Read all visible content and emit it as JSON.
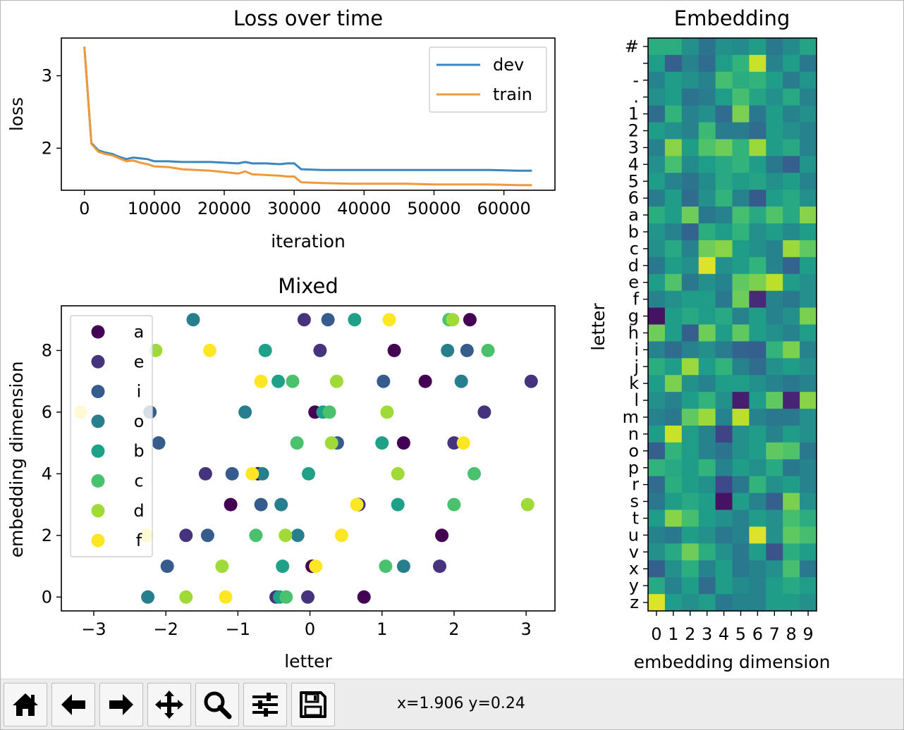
{
  "toolbar": {
    "buttons": [
      {
        "icon": "home-icon"
      },
      {
        "icon": "back-arrow-icon"
      },
      {
        "icon": "forward-arrow-icon"
      },
      {
        "icon": "pan-move-icon"
      },
      {
        "icon": "zoom-magnifier-icon"
      },
      {
        "icon": "configure-subplots-icon"
      },
      {
        "icon": "save-floppy-icon"
      }
    ],
    "coords": "x=1.906 y=0.24"
  },
  "chart_data": [
    {
      "type": "line",
      "title": "Loss over time",
      "xlabel": "iteration",
      "ylabel": "loss",
      "xlim": [
        -3300,
        67300
      ],
      "ylim": [
        1.42,
        3.52
      ],
      "xticks": [
        0,
        10000,
        20000,
        30000,
        40000,
        50000,
        60000
      ],
      "yticks": [
        2,
        3
      ],
      "legend": "upper right",
      "series": [
        {
          "name": "dev",
          "color": "#3a86bf",
          "x": [
            0,
            1000,
            2000,
            3000,
            4000,
            5000,
            6000,
            7000,
            8000,
            9000,
            10000,
            12000,
            14000,
            16000,
            18000,
            20000,
            22000,
            23000,
            24000,
            26000,
            28000,
            29000,
            30000,
            31000,
            34000,
            38000,
            42000,
            46000,
            50000,
            54000,
            58000,
            62000,
            64000
          ],
          "y": [
            3.4,
            2.07,
            1.97,
            1.94,
            1.92,
            1.88,
            1.85,
            1.87,
            1.86,
            1.85,
            1.82,
            1.82,
            1.81,
            1.81,
            1.81,
            1.8,
            1.79,
            1.81,
            1.79,
            1.79,
            1.78,
            1.79,
            1.79,
            1.71,
            1.7,
            1.7,
            1.7,
            1.7,
            1.7,
            1.7,
            1.7,
            1.69,
            1.69
          ]
        },
        {
          "name": "train",
          "color": "#f0993c",
          "x": [
            0,
            1000,
            2000,
            3000,
            4000,
            5000,
            6000,
            7000,
            8000,
            9000,
            10000,
            12000,
            14000,
            16000,
            18000,
            20000,
            22000,
            23000,
            24000,
            26000,
            28000,
            29000,
            30000,
            31000,
            34000,
            38000,
            42000,
            46000,
            50000,
            54000,
            58000,
            62000,
            64000
          ],
          "y": [
            3.4,
            2.06,
            1.95,
            1.92,
            1.9,
            1.86,
            1.82,
            1.83,
            1.8,
            1.78,
            1.75,
            1.74,
            1.71,
            1.7,
            1.69,
            1.67,
            1.65,
            1.68,
            1.64,
            1.63,
            1.62,
            1.61,
            1.61,
            1.53,
            1.52,
            1.51,
            1.51,
            1.51,
            1.5,
            1.5,
            1.5,
            1.49,
            1.49
          ]
        }
      ]
    },
    {
      "type": "scatter",
      "title": "Mixed",
      "xlabel": "letter",
      "ylabel": "embedding dimension",
      "xlim": [
        -3.45,
        3.4
      ],
      "ylim": [
        -0.45,
        9.45
      ],
      "xticks": [
        -3,
        -2,
        -1,
        0,
        1,
        2,
        3
      ],
      "yticks": [
        0,
        2,
        4,
        6,
        8
      ],
      "legend": "upper left",
      "series": [
        {
          "name": "a",
          "color": "#440154",
          "points": [
            [
              0.75,
              0
            ],
            [
              0.03,
              1
            ],
            [
              1.83,
              2
            ],
            [
              -1.1,
              3
            ],
            [
              -0.72,
              4
            ],
            [
              1.3,
              5
            ],
            [
              0.07,
              6
            ],
            [
              1.6,
              7
            ],
            [
              1.17,
              8
            ],
            [
              2.22,
              9
            ],
            [
              0.66,
              3
            ]
          ]
        },
        {
          "name": "e",
          "color": "#46337e",
          "points": [
            [
              -0.03,
              0
            ],
            [
              1.8,
              1
            ],
            [
              -1.72,
              2
            ],
            [
              0.68,
              3
            ],
            [
              -1.45,
              4
            ],
            [
              2.0,
              5
            ],
            [
              2.42,
              6
            ],
            [
              3.07,
              7
            ],
            [
              0.14,
              8
            ],
            [
              -0.08,
              9
            ],
            [
              -0.47,
              0
            ]
          ]
        },
        {
          "name": "i",
          "color": "#365c8d",
          "points": [
            [
              -1.98,
              1
            ],
            [
              -1.42,
              2
            ],
            [
              -0.68,
              3
            ],
            [
              -1.08,
              4
            ],
            [
              -2.1,
              5
            ],
            [
              -2.22,
              6
            ],
            [
              1.02,
              7
            ],
            [
              2.18,
              8
            ],
            [
              0.25,
              9
            ],
            [
              0.38,
              5
            ]
          ]
        },
        {
          "name": "o",
          "color": "#277f8e",
          "points": [
            [
              -2.25,
              0
            ],
            [
              1.3,
              1
            ],
            [
              -0.17,
              2
            ],
            [
              -0.4,
              3
            ],
            [
              -0.66,
              4
            ],
            [
              -0.9,
              6
            ],
            [
              2.1,
              7
            ],
            [
              1.91,
              8
            ],
            [
              -1.62,
              9
            ]
          ]
        },
        {
          "name": "b",
          "color": "#1fa187",
          "points": [
            [
              -0.42,
              0
            ],
            [
              -0.38,
              1
            ],
            [
              1.22,
              3
            ],
            [
              1.0,
              5
            ],
            [
              0.18,
              6
            ],
            [
              -0.44,
              7
            ],
            [
              -0.62,
              8
            ],
            [
              0.62,
              9
            ],
            [
              -0.02,
              4
            ]
          ]
        },
        {
          "name": "c",
          "color": "#4ac16d",
          "points": [
            [
              -0.33,
              0
            ],
            [
              1.05,
              1
            ],
            [
              -0.75,
              2
            ],
            [
              2.0,
              3
            ],
            [
              2.28,
              4
            ],
            [
              -0.18,
              5
            ],
            [
              0.27,
              6
            ],
            [
              -0.24,
              7
            ],
            [
              2.47,
              8
            ],
            [
              1.93,
              9
            ]
          ]
        },
        {
          "name": "d",
          "color": "#a0da39",
          "points": [
            [
              -1.72,
              0
            ],
            [
              -1.22,
              1
            ],
            [
              -0.34,
              2
            ],
            [
              3.02,
              3
            ],
            [
              1.22,
              4
            ],
            [
              0.3,
              5
            ],
            [
              1.07,
              6
            ],
            [
              0.37,
              7
            ],
            [
              -2.14,
              8
            ],
            [
              1.98,
              9
            ]
          ]
        },
        {
          "name": "f",
          "color": "#fde725",
          "points": [
            [
              -1.17,
              0
            ],
            [
              0.08,
              1
            ],
            [
              0.44,
              2
            ],
            [
              0.65,
              3
            ],
            [
              -0.8,
              4
            ],
            [
              2.13,
              5
            ],
            [
              -3.18,
              6
            ],
            [
              -0.68,
              7
            ],
            [
              -1.39,
              8
            ],
            [
              1.1,
              9
            ],
            [
              -2.27,
              2
            ]
          ]
        }
      ]
    },
    {
      "type": "heatmap",
      "title": "Embedding",
      "xlabel": "embedding dimension",
      "ylabel": "letter",
      "colormap": "viridis",
      "vmin": 0,
      "vmax": 1,
      "x": [
        "0",
        "1",
        "2",
        "3",
        "4",
        "5",
        "6",
        "7",
        "8",
        "9"
      ],
      "y": [
        "#",
        " ",
        "-",
        ".",
        "1",
        "2",
        "3",
        "4",
        "5",
        "6",
        "a",
        "b",
        "c",
        "d",
        "e",
        "f",
        "g",
        "h",
        "i",
        "j",
        "k",
        "l",
        "m",
        "n",
        "o",
        "p",
        "r",
        "s",
        "t",
        "u",
        "v",
        "x",
        "y",
        "z"
      ],
      "values": [
        [
          0.62,
          0.62,
          0.5,
          0.38,
          0.5,
          0.48,
          0.55,
          0.4,
          0.48,
          0.58
        ],
        [
          0.55,
          0.3,
          0.45,
          0.35,
          0.55,
          0.65,
          0.92,
          0.45,
          0.55,
          0.4
        ],
        [
          0.45,
          0.55,
          0.5,
          0.45,
          0.7,
          0.62,
          0.65,
          0.55,
          0.42,
          0.52
        ],
        [
          0.5,
          0.55,
          0.38,
          0.42,
          0.55,
          0.7,
          0.58,
          0.5,
          0.6,
          0.45
        ],
        [
          0.35,
          0.65,
          0.45,
          0.5,
          0.35,
          0.8,
          0.4,
          0.55,
          0.45,
          0.5
        ],
        [
          0.55,
          0.5,
          0.45,
          0.68,
          0.42,
          0.42,
          0.35,
          0.55,
          0.5,
          0.45
        ],
        [
          0.45,
          0.82,
          0.55,
          0.72,
          0.78,
          0.65,
          0.85,
          0.55,
          0.6,
          0.45
        ],
        [
          0.5,
          0.7,
          0.48,
          0.55,
          0.6,
          0.65,
          0.55,
          0.4,
          0.3,
          0.52
        ],
        [
          0.55,
          0.45,
          0.38,
          0.48,
          0.6,
          0.55,
          0.58,
          0.5,
          0.55,
          0.45
        ],
        [
          0.42,
          0.55,
          0.35,
          0.5,
          0.65,
          0.45,
          0.28,
          0.55,
          0.6,
          0.5
        ],
        [
          0.62,
          0.55,
          0.78,
          0.4,
          0.45,
          0.7,
          0.6,
          0.72,
          0.6,
          0.82
        ],
        [
          0.52,
          0.45,
          0.32,
          0.62,
          0.55,
          0.65,
          0.5,
          0.55,
          0.48,
          0.55
        ],
        [
          0.5,
          0.6,
          0.45,
          0.78,
          0.82,
          0.55,
          0.5,
          0.45,
          0.85,
          0.75
        ],
        [
          0.4,
          0.55,
          0.5,
          0.95,
          0.5,
          0.55,
          0.65,
          0.45,
          0.32,
          0.55
        ],
        [
          0.55,
          0.72,
          0.4,
          0.5,
          0.45,
          0.75,
          0.8,
          0.9,
          0.55,
          0.5
        ],
        [
          0.45,
          0.5,
          0.55,
          0.55,
          0.4,
          0.78,
          0.12,
          0.45,
          0.4,
          0.5
        ],
        [
          0.05,
          0.55,
          0.6,
          0.55,
          0.6,
          0.45,
          0.55,
          0.45,
          0.5,
          0.8
        ],
        [
          0.78,
          0.55,
          0.3,
          0.78,
          0.55,
          0.75,
          0.55,
          0.5,
          0.45,
          0.55
        ],
        [
          0.45,
          0.35,
          0.45,
          0.5,
          0.42,
          0.32,
          0.3,
          0.65,
          0.8,
          0.45
        ],
        [
          0.62,
          0.55,
          0.85,
          0.55,
          0.65,
          0.45,
          0.35,
          0.5,
          0.55,
          0.5
        ],
        [
          0.55,
          0.8,
          0.5,
          0.45,
          0.55,
          0.55,
          0.5,
          0.45,
          0.4,
          0.45
        ],
        [
          0.5,
          0.45,
          0.55,
          0.65,
          0.5,
          0.08,
          0.55,
          0.75,
          0.1,
          0.82
        ],
        [
          0.45,
          0.4,
          0.75,
          0.85,
          0.45,
          0.9,
          0.45,
          0.4,
          0.4,
          0.5
        ],
        [
          0.55,
          0.92,
          0.55,
          0.45,
          0.2,
          0.5,
          0.55,
          0.45,
          0.55,
          0.5
        ],
        [
          0.3,
          0.65,
          0.55,
          0.45,
          0.38,
          0.5,
          0.55,
          0.75,
          0.72,
          0.4
        ],
        [
          0.65,
          0.6,
          0.55,
          0.65,
          0.45,
          0.55,
          0.5,
          0.6,
          0.4,
          0.45
        ],
        [
          0.35,
          0.62,
          0.55,
          0.5,
          0.22,
          0.4,
          0.65,
          0.5,
          0.55,
          0.45
        ],
        [
          0.4,
          0.55,
          0.6,
          0.55,
          0.05,
          0.55,
          0.45,
          0.3,
          0.8,
          0.5
        ],
        [
          0.55,
          0.82,
          0.7,
          0.55,
          0.5,
          0.45,
          0.55,
          0.5,
          0.7,
          0.62
        ],
        [
          0.45,
          0.4,
          0.55,
          0.5,
          0.4,
          0.45,
          0.95,
          0.5,
          0.75,
          0.7
        ],
        [
          0.5,
          0.6,
          0.78,
          0.62,
          0.5,
          0.4,
          0.55,
          0.25,
          0.62,
          0.55
        ],
        [
          0.3,
          0.5,
          0.62,
          0.45,
          0.55,
          0.4,
          0.45,
          0.5,
          0.7,
          0.4
        ],
        [
          0.6,
          0.45,
          0.55,
          0.35,
          0.55,
          0.48,
          0.45,
          0.55,
          0.6,
          0.55
        ],
        [
          0.95,
          0.55,
          0.5,
          0.55,
          0.4,
          0.45,
          0.45,
          0.55,
          0.55,
          0.5
        ]
      ]
    }
  ]
}
